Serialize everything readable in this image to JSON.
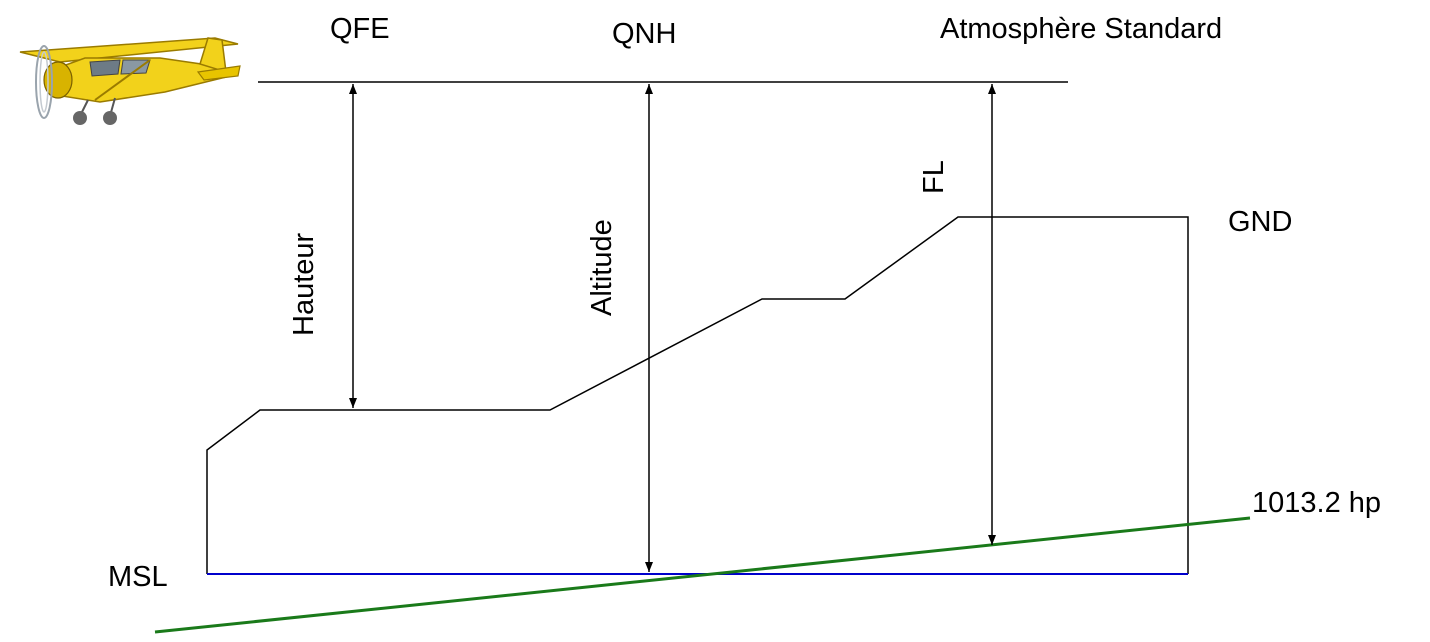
{
  "labels": {
    "qfe": "QFE",
    "qnh": "QNH",
    "standard_atmosphere": "Atmosphère Standard",
    "height": "Hauteur",
    "altitude": "Altitude",
    "flight_level": "FL",
    "ground": "GND",
    "mean_sea_level": "MSL",
    "standard_pressure": "1013.2 hp"
  },
  "colors": {
    "lines": "#000000",
    "sea_level": "#0000cc",
    "isobar_1013": "#1a7a1a",
    "aircraft_body": "#f2d21b"
  },
  "icons": {
    "aircraft": "light-aircraft-icon"
  }
}
